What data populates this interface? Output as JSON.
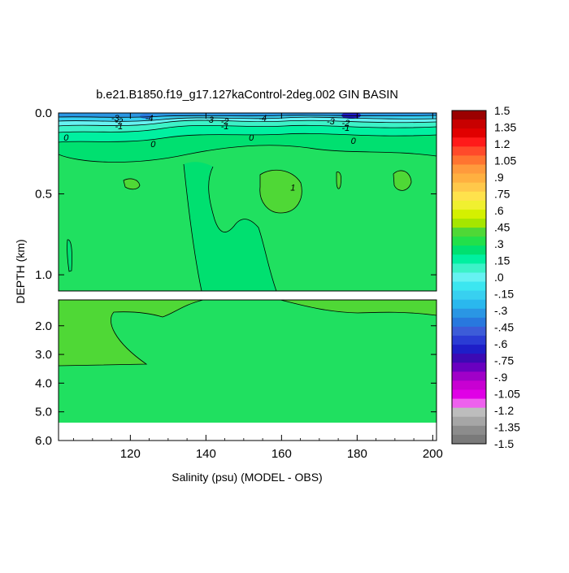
{
  "chart_data": {
    "type": "contour",
    "title": "b.e21.B1850.f19_g17.127kaControl-2deg.002 GIN BASIN",
    "xlabel": "Salinity (psu) (MODEL - OBS)",
    "ylabel": "DEPTH (km)",
    "xlim": [
      101,
      201
    ],
    "x_ticks": [
      {
        "value": 120,
        "label": "120"
      },
      {
        "value": 140,
        "label": "140"
      },
      {
        "value": 160,
        "label": "160"
      },
      {
        "value": 180,
        "label": "180"
      },
      {
        "value": 200,
        "label": "200"
      }
    ],
    "upper_panel": {
      "ylim": [
        0.0,
        1.1
      ],
      "y_ticks": [
        {
          "value": 0.0,
          "label": "0.0"
        },
        {
          "value": 0.5,
          "label": "0.5"
        },
        {
          "value": 1.0,
          "label": "1.0"
        }
      ]
    },
    "lower_panel": {
      "ylim": [
        1.1,
        6.0
      ],
      "y_ticks": [
        {
          "value": 2.0,
          "label": "2.0"
        },
        {
          "value": 3.0,
          "label": "3.0"
        },
        {
          "value": 4.0,
          "label": "4.0"
        },
        {
          "value": 5.0,
          "label": "5.0"
        },
        {
          "value": 6.0,
          "label": "6.0"
        }
      ],
      "data_bottom_depth": 5.4
    },
    "colorbar": {
      "levels": [
        "1.5",
        "1.35",
        "1.2",
        "1.05",
        ".9",
        ".75",
        ".6",
        ".45",
        ".3",
        ".15",
        ".0",
        "-.15",
        "-.3",
        "-.45",
        "-.6",
        "-.75",
        "-.9",
        "-1.05",
        "-1.2",
        "-1.35",
        "-1.5"
      ],
      "colors": [
        "#9b0000",
        "#c80000",
        "#e10000",
        "#ff1a1a",
        "#ff4a2a",
        "#ff7430",
        "#ff9a3c",
        "#ffb040",
        "#ffc84a",
        "#ffe24c",
        "#f0f030",
        "#d4f000",
        "#a6e600",
        "#4fd836",
        "#22e04a",
        "#00e070",
        "#00f0a0",
        "#3cf2c8",
        "#66f2f2",
        "#3ce6f0",
        "#38d0f0",
        "#2ab8ee",
        "#2a96e4",
        "#2878de",
        "#3c5cd8",
        "#2a3cd4",
        "#1e1ec8",
        "#3c0ab4",
        "#6a00c0",
        "#a000c8",
        "#c800d2",
        "#e000e6",
        "#ee60ee",
        "#bdbdbd",
        "#a6a6a6",
        "#8c8c8c",
        "#7a7a7a"
      ],
      "background_level_color": "#20e060"
    },
    "contour_labels": [
      {
        "text": "-3",
        "x": 116,
        "y": 0.03
      },
      {
        "text": "-4",
        "x": 125,
        "y": 0.03
      },
      {
        "text": "-2",
        "x": 117,
        "y": 0.05
      },
      {
        "text": "-1",
        "x": 117,
        "y": 0.08
      },
      {
        "text": "-3",
        "x": 141,
        "y": 0.04
      },
      {
        "text": "-2",
        "x": 145,
        "y": 0.05
      },
      {
        "text": "-1",
        "x": 145,
        "y": 0.08
      },
      {
        "text": "-4",
        "x": 155,
        "y": 0.03
      },
      {
        "text": "-3",
        "x": 173,
        "y": 0.05
      },
      {
        "text": "-2",
        "x": 177,
        "y": 0.06
      },
      {
        "text": "-1",
        "x": 177,
        "y": 0.09
      },
      {
        "text": "0",
        "x": 103,
        "y": 0.15
      },
      {
        "text": "0",
        "x": 126,
        "y": 0.19
      },
      {
        "text": "0",
        "x": 152,
        "y": 0.15
      },
      {
        "text": "0",
        "x": 179,
        "y": 0.17
      },
      {
        "text": "1",
        "x": 163,
        "y": 0.46
      }
    ]
  }
}
